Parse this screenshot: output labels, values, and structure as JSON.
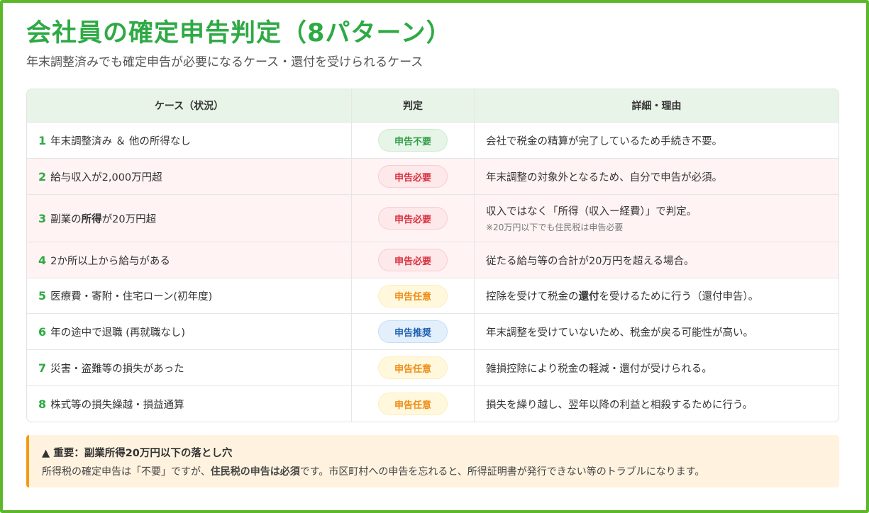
{
  "title": "会社員の確定申告判定（8パターン）",
  "subtitle": "年末調整済みでも確定申告が必要になるケース・還付を受けられるケース",
  "table": {
    "headers": [
      "ケース（状況）",
      "判定",
      "詳細・理由"
    ],
    "rows": [
      {
        "num": "1",
        "case_pre": "年末調整済み ＆ 他の所得なし",
        "case_bold": "",
        "case_post": "",
        "badge": "申告不要",
        "badge_type": "green",
        "detail_pre": "会社で税金の精算が完了しているため手続き不要。",
        "detail_bold": "",
        "detail_post": "",
        "note": "",
        "highlight": false
      },
      {
        "num": "2",
        "case_pre": "給与収入が2,000万円超",
        "case_bold": "",
        "case_post": "",
        "badge": "申告必要",
        "badge_type": "red",
        "detail_pre": "年末調整の対象外となるため、自分で申告が必須。",
        "detail_bold": "",
        "detail_post": "",
        "note": "",
        "highlight": true
      },
      {
        "num": "3",
        "case_pre": "副業の",
        "case_bold": "所得",
        "case_post": "が20万円超",
        "badge": "申告必要",
        "badge_type": "red",
        "detail_pre": "収入ではなく「所得（収入ー経費）」で判定。",
        "detail_bold": "",
        "detail_post": "",
        "note": "※20万円以下でも住民税は申告必要",
        "highlight": true
      },
      {
        "num": "4",
        "case_pre": "2か所以上から給与がある",
        "case_bold": "",
        "case_post": "",
        "badge": "申告必要",
        "badge_type": "red",
        "detail_pre": "従たる給与等の合計が20万円を超える場合。",
        "detail_bold": "",
        "detail_post": "",
        "note": "",
        "highlight": true
      },
      {
        "num": "5",
        "case_pre": "医療費・寄附・住宅ローン(初年度)",
        "case_bold": "",
        "case_post": "",
        "badge": "申告任意",
        "badge_type": "yellow",
        "detail_pre": "控除を受けて税金の",
        "detail_bold": "還付",
        "detail_post": "を受けるために行う（還付申告）。",
        "note": "",
        "highlight": false
      },
      {
        "num": "6",
        "case_pre": "年の途中で退職 (再就職なし)",
        "case_bold": "",
        "case_post": "",
        "badge": "申告推奨",
        "badge_type": "blue",
        "detail_pre": "年末調整を受けていないため、税金が戻る可能性が高い。",
        "detail_bold": "",
        "detail_post": "",
        "note": "",
        "highlight": false
      },
      {
        "num": "7",
        "case_pre": "災害・盗難等の損失があった",
        "case_bold": "",
        "case_post": "",
        "badge": "申告任意",
        "badge_type": "yellow",
        "detail_pre": "雑損控除により税金の軽減・還付が受けられる。",
        "detail_bold": "",
        "detail_post": "",
        "note": "",
        "highlight": false
      },
      {
        "num": "8",
        "case_pre": "株式等の損失繰越・損益通算",
        "case_bold": "",
        "case_post": "",
        "badge": "申告任意",
        "badge_type": "yellow",
        "detail_pre": "損失を繰り越し、翌年以降の利益と相殺するために行う。",
        "detail_bold": "",
        "detail_post": "",
        "note": "",
        "highlight": false
      }
    ]
  },
  "badge_colors": {
    "green": {
      "bg": "#e6f5e8",
      "border": "#cdeccf",
      "fg": "#2e9e46"
    },
    "red": {
      "bg": "#fde8ea",
      "border": "#f8cdd2",
      "fg": "#d9303e"
    },
    "yellow": {
      "bg": "#fff8dc",
      "border": "#fdeec0",
      "fg": "#ef8a13"
    },
    "blue": {
      "bg": "#e3f0fc",
      "border": "#c5def7",
      "fg": "#1f5fb0"
    }
  },
  "warning": {
    "icon": "warning-triangle-icon",
    "title": "重要：副業所得20万円以下の落とし穴",
    "text_pre": "所得税の確定申告は「不要」ですが、",
    "text_bold": "住民税の申告は必須",
    "text_post": "です。市区町村への申告を忘れると、所得証明書が発行できない等のトラブルになります。"
  }
}
